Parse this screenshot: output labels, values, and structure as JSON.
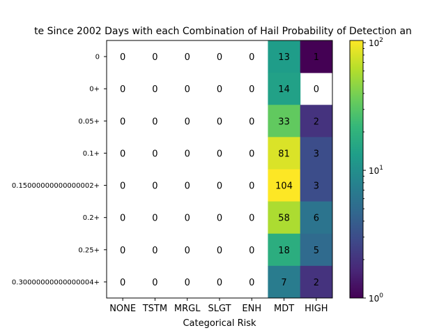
{
  "chart_data": {
    "type": "heatmap",
    "title": "te Since 2002 Days with each Combination of Hail Probability of Detection an",
    "xlabel": "Categorical Risk",
    "ylabel": "",
    "x_categories": [
      "NONE",
      "TSTM",
      "MRGL",
      "SLGT",
      "ENH",
      "MDT",
      "HIGH"
    ],
    "y_categories": [
      "0",
      "0+",
      "0.05+",
      "0.1+",
      "0.15000000000000002+",
      "0.2+",
      "0.25+",
      "0.30000000000000004+"
    ],
    "values": [
      [
        0,
        0,
        0,
        0,
        0,
        13,
        1
      ],
      [
        0,
        0,
        0,
        0,
        0,
        14,
        0
      ],
      [
        0,
        0,
        0,
        0,
        0,
        33,
        2
      ],
      [
        0,
        0,
        0,
        0,
        0,
        81,
        3
      ],
      [
        0,
        0,
        0,
        0,
        0,
        104,
        3
      ],
      [
        0,
        0,
        0,
        0,
        0,
        58,
        6
      ],
      [
        0,
        0,
        0,
        0,
        0,
        18,
        5
      ],
      [
        0,
        0,
        0,
        0,
        0,
        7,
        2
      ]
    ],
    "colormap": "viridis",
    "color_scale": "log",
    "colorbar_range": [
      1,
      104
    ],
    "colorbar_ticks": [
      {
        "value": 1,
        "label": "10",
        "exp": "0"
      },
      {
        "value": 10,
        "label": "10",
        "exp": "1"
      },
      {
        "value": 100,
        "label": "10",
        "exp": "2"
      }
    ],
    "grid": false
  }
}
